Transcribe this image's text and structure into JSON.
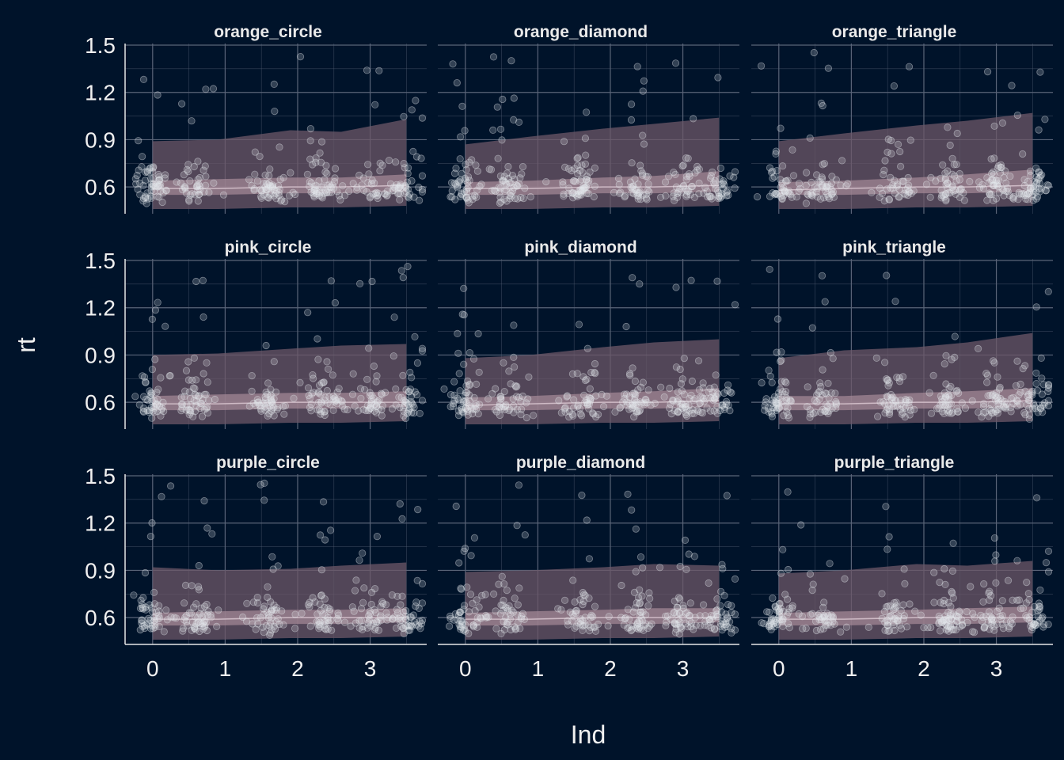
{
  "chart_data": {
    "type": "scatter",
    "layout": "facet-grid-3x3",
    "xlabel": "Ind",
    "ylabel": "rt",
    "xlim": [
      -0.38,
      3.78
    ],
    "ylim": [
      0.43,
      1.51
    ],
    "x_ticks": [
      "0",
      "1",
      "2",
      "3"
    ],
    "y_ticks": [
      "0.6",
      "0.9",
      "1.2",
      "1.5"
    ],
    "grid": true,
    "colors": {
      "background": "#00132A",
      "grid": "#5A6478",
      "axis_line": "#E6E6E6",
      "point": "#E3E6EC",
      "outer_band": "#6E5868",
      "inner_band": "#A78A99",
      "median_line": "#D9C7D0"
    },
    "bands_x": [
      0,
      0.9,
      1.9,
      2.6,
      3.5
    ],
    "facets": [
      {
        "title": "orange_circle",
        "outer_band": {
          "low": [
            0.46,
            0.46,
            0.47,
            0.47,
            0.48
          ],
          "high": [
            0.89,
            0.9,
            0.96,
            0.95,
            1.03
          ]
        },
        "inner_band": {
          "low": [
            0.55,
            0.55,
            0.56,
            0.56,
            0.57
          ],
          "high": [
            0.64,
            0.65,
            0.66,
            0.66,
            0.68
          ]
        },
        "median": [
          0.59,
          0.59,
          0.6,
          0.6,
          0.61
        ]
      },
      {
        "title": "orange_diamond",
        "outer_band": {
          "low": [
            0.46,
            0.46,
            0.47,
            0.47,
            0.48
          ],
          "high": [
            0.87,
            0.92,
            0.97,
            1.0,
            1.04
          ]
        },
        "inner_band": {
          "low": [
            0.55,
            0.55,
            0.56,
            0.56,
            0.57
          ],
          "high": [
            0.63,
            0.64,
            0.66,
            0.67,
            0.7
          ]
        },
        "median": [
          0.59,
          0.59,
          0.6,
          0.6,
          0.61
        ]
      },
      {
        "title": "orange_triangle",
        "outer_band": {
          "low": [
            0.46,
            0.46,
            0.47,
            0.47,
            0.48
          ],
          "high": [
            0.89,
            0.94,
            0.99,
            1.02,
            1.07
          ]
        },
        "inner_band": {
          "low": [
            0.55,
            0.55,
            0.56,
            0.56,
            0.57
          ],
          "high": [
            0.63,
            0.64,
            0.66,
            0.68,
            0.71
          ]
        },
        "median": [
          0.58,
          0.59,
          0.6,
          0.6,
          0.61
        ]
      },
      {
        "title": "pink_circle",
        "outer_band": {
          "low": [
            0.46,
            0.46,
            0.47,
            0.47,
            0.48
          ],
          "high": [
            0.9,
            0.91,
            0.94,
            0.96,
            0.97
          ]
        },
        "inner_band": {
          "low": [
            0.55,
            0.55,
            0.56,
            0.56,
            0.57
          ],
          "high": [
            0.64,
            0.65,
            0.66,
            0.66,
            0.67
          ]
        },
        "median": [
          0.59,
          0.59,
          0.6,
          0.6,
          0.6
        ]
      },
      {
        "title": "pink_diamond",
        "outer_band": {
          "low": [
            0.46,
            0.46,
            0.47,
            0.47,
            0.48
          ],
          "high": [
            0.88,
            0.9,
            0.95,
            0.98,
            1.0
          ]
        },
        "inner_band": {
          "low": [
            0.55,
            0.55,
            0.56,
            0.56,
            0.57
          ],
          "high": [
            0.63,
            0.64,
            0.66,
            0.67,
            0.69
          ]
        },
        "median": [
          0.58,
          0.59,
          0.6,
          0.6,
          0.61
        ]
      },
      {
        "title": "pink_triangle",
        "outer_band": {
          "low": [
            0.46,
            0.46,
            0.47,
            0.47,
            0.48
          ],
          "high": [
            0.88,
            0.93,
            0.95,
            0.98,
            1.04
          ]
        },
        "inner_band": {
          "low": [
            0.55,
            0.55,
            0.56,
            0.56,
            0.57
          ],
          "high": [
            0.64,
            0.64,
            0.66,
            0.67,
            0.69
          ]
        },
        "median": [
          0.59,
          0.59,
          0.6,
          0.6,
          0.61
        ]
      },
      {
        "title": "purple_circle",
        "outer_band": {
          "low": [
            0.46,
            0.46,
            0.47,
            0.47,
            0.48
          ],
          "high": [
            0.92,
            0.9,
            0.91,
            0.93,
            0.95
          ]
        },
        "inner_band": {
          "low": [
            0.55,
            0.55,
            0.56,
            0.56,
            0.57
          ],
          "high": [
            0.63,
            0.64,
            0.65,
            0.65,
            0.66
          ]
        },
        "median": [
          0.59,
          0.59,
          0.6,
          0.6,
          0.6
        ]
      },
      {
        "title": "purple_diamond",
        "outer_band": {
          "low": [
            0.46,
            0.46,
            0.47,
            0.47,
            0.48
          ],
          "high": [
            0.89,
            0.9,
            0.92,
            0.94,
            0.93
          ]
        },
        "inner_band": {
          "low": [
            0.55,
            0.55,
            0.56,
            0.56,
            0.57
          ],
          "high": [
            0.63,
            0.64,
            0.65,
            0.66,
            0.66
          ]
        },
        "median": [
          0.59,
          0.59,
          0.6,
          0.6,
          0.6
        ]
      },
      {
        "title": "purple_triangle",
        "outer_band": {
          "low": [
            0.46,
            0.46,
            0.47,
            0.47,
            0.48
          ],
          "high": [
            0.88,
            0.9,
            0.94,
            0.93,
            0.96
          ]
        },
        "inner_band": {
          "low": [
            0.55,
            0.55,
            0.56,
            0.56,
            0.57
          ],
          "high": [
            0.63,
            0.64,
            0.65,
            0.66,
            0.67
          ]
        },
        "median": [
          0.59,
          0.59,
          0.6,
          0.6,
          0.6
        ]
      }
    ]
  }
}
